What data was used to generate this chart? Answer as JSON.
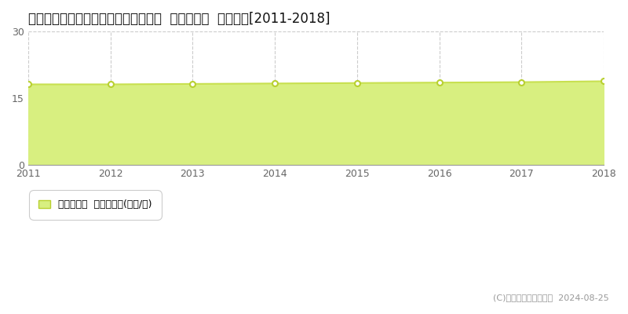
{
  "title": "愛知県豊田市西田町南屋敷３０番６外  基準地価格  地価推移[2011-2018]",
  "years": [
    2011,
    2012,
    2013,
    2014,
    2015,
    2016,
    2017,
    2018
  ],
  "values": [
    18.1,
    18.1,
    18.2,
    18.3,
    18.4,
    18.5,
    18.6,
    18.8
  ],
  "ylim": [
    0,
    30
  ],
  "yticks": [
    0,
    15,
    30
  ],
  "line_color": "#c8e050",
  "fill_color": "#d8ef80",
  "fill_alpha": 1.0,
  "marker_color": "#ffffff",
  "marker_edge_color": "#b8d030",
  "marker_size": 5,
  "grid_color": "#cccccc",
  "bg_color": "#ffffff",
  "legend_label": "基準地価格  平均坪単価(万円/坪)",
  "copyright_text": "(C)土地価格ドットコム  2024-08-25",
  "title_fontsize": 12,
  "axis_fontsize": 9,
  "legend_fontsize": 9,
  "copyright_fontsize": 8
}
